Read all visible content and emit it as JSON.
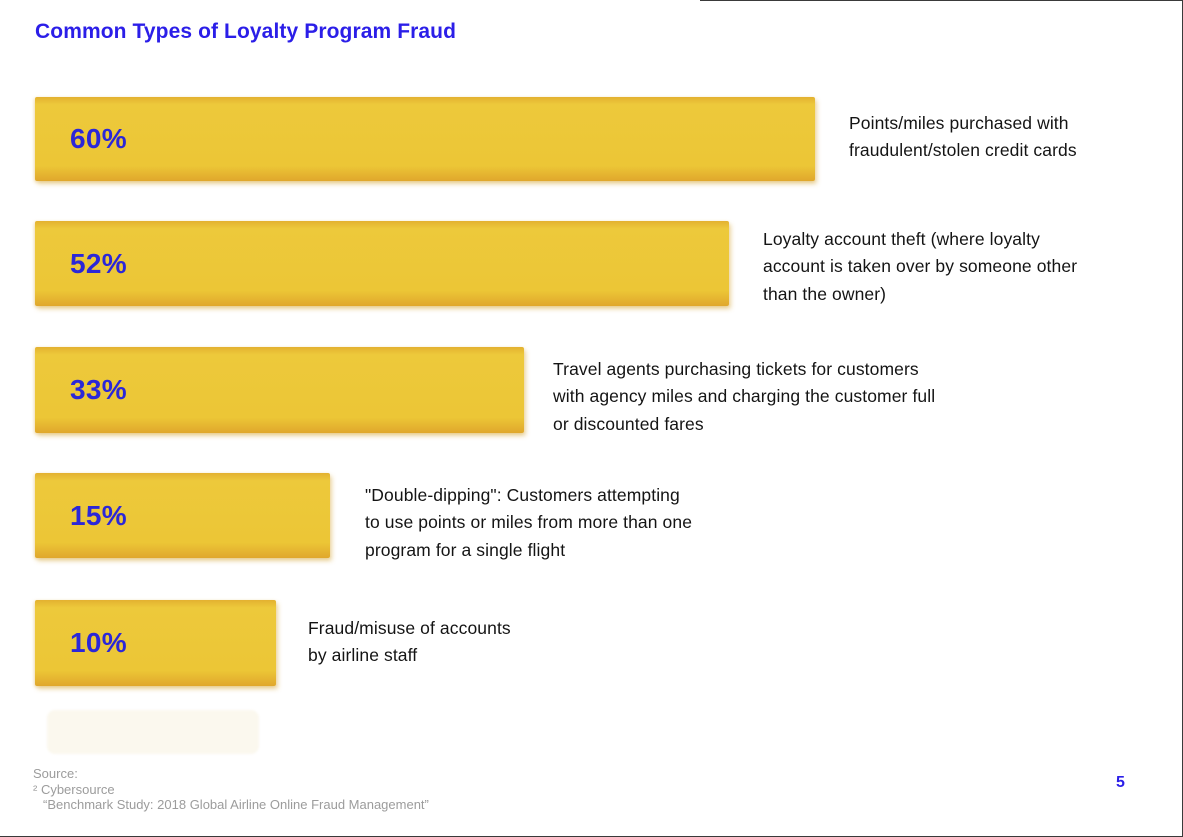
{
  "page": {
    "title": "Common Types of Loyalty Program Fraud",
    "page_number": "5"
  },
  "source": {
    "label": "Source:",
    "reference": "² Cybersource",
    "study": "“Benchmark Study: 2018 Global Airline Online Fraud Management”"
  },
  "colors": {
    "bar_yellow": "#ECC636",
    "accent_blue": "#2B1EE8",
    "pct_blue": "#2B27D8",
    "label_text": "#141414",
    "source_gray": "#9C9C9C"
  },
  "chart_data": {
    "type": "bar",
    "orientation": "horizontal",
    "title": "Common Types of Loyalty Program Fraud",
    "value_unit": "%",
    "xlim": [
      0,
      100
    ],
    "grid": false,
    "legend": false,
    "categories": [
      "Points/miles purchased with fraudulent/stolen credit cards",
      "Loyalty account theft (where loyalty account is taken over by someone other than the owner)",
      "Travel agents purchasing tickets for customers with agency miles and charging the customer full or discounted fares",
      "\"Double-dipping\": Customers attempting to use points or miles from more than one program for a single flight",
      "Fraud/misuse of accounts by airline staff"
    ],
    "values": [
      60,
      52,
      33,
      15,
      10
    ],
    "rows": [
      {
        "pct_label": "60%",
        "value": 60,
        "label_lines": [
          "Points/miles purchased with",
          "fraudulent/stolen credit cards"
        ]
      },
      {
        "pct_label": "52%",
        "value": 52,
        "label_lines": [
          "Loyalty account theft (where loyalty",
          "account is taken over by someone other",
          "than the owner)"
        ]
      },
      {
        "pct_label": "33%",
        "value": 33,
        "label_lines": [
          "Travel agents purchasing tickets for customers",
          "with agency miles and charging the customer full",
          "or discounted fares"
        ]
      },
      {
        "pct_label": "15%",
        "value": 15,
        "label_lines": [
          "\"Double-dipping\": Customers attempting",
          "to use points or miles from more than one",
          "program for a single flight"
        ]
      },
      {
        "pct_label": "10%",
        "value": 10,
        "label_lines": [
          "Fraud/misuse of accounts",
          "by airline staff"
        ]
      }
    ]
  }
}
